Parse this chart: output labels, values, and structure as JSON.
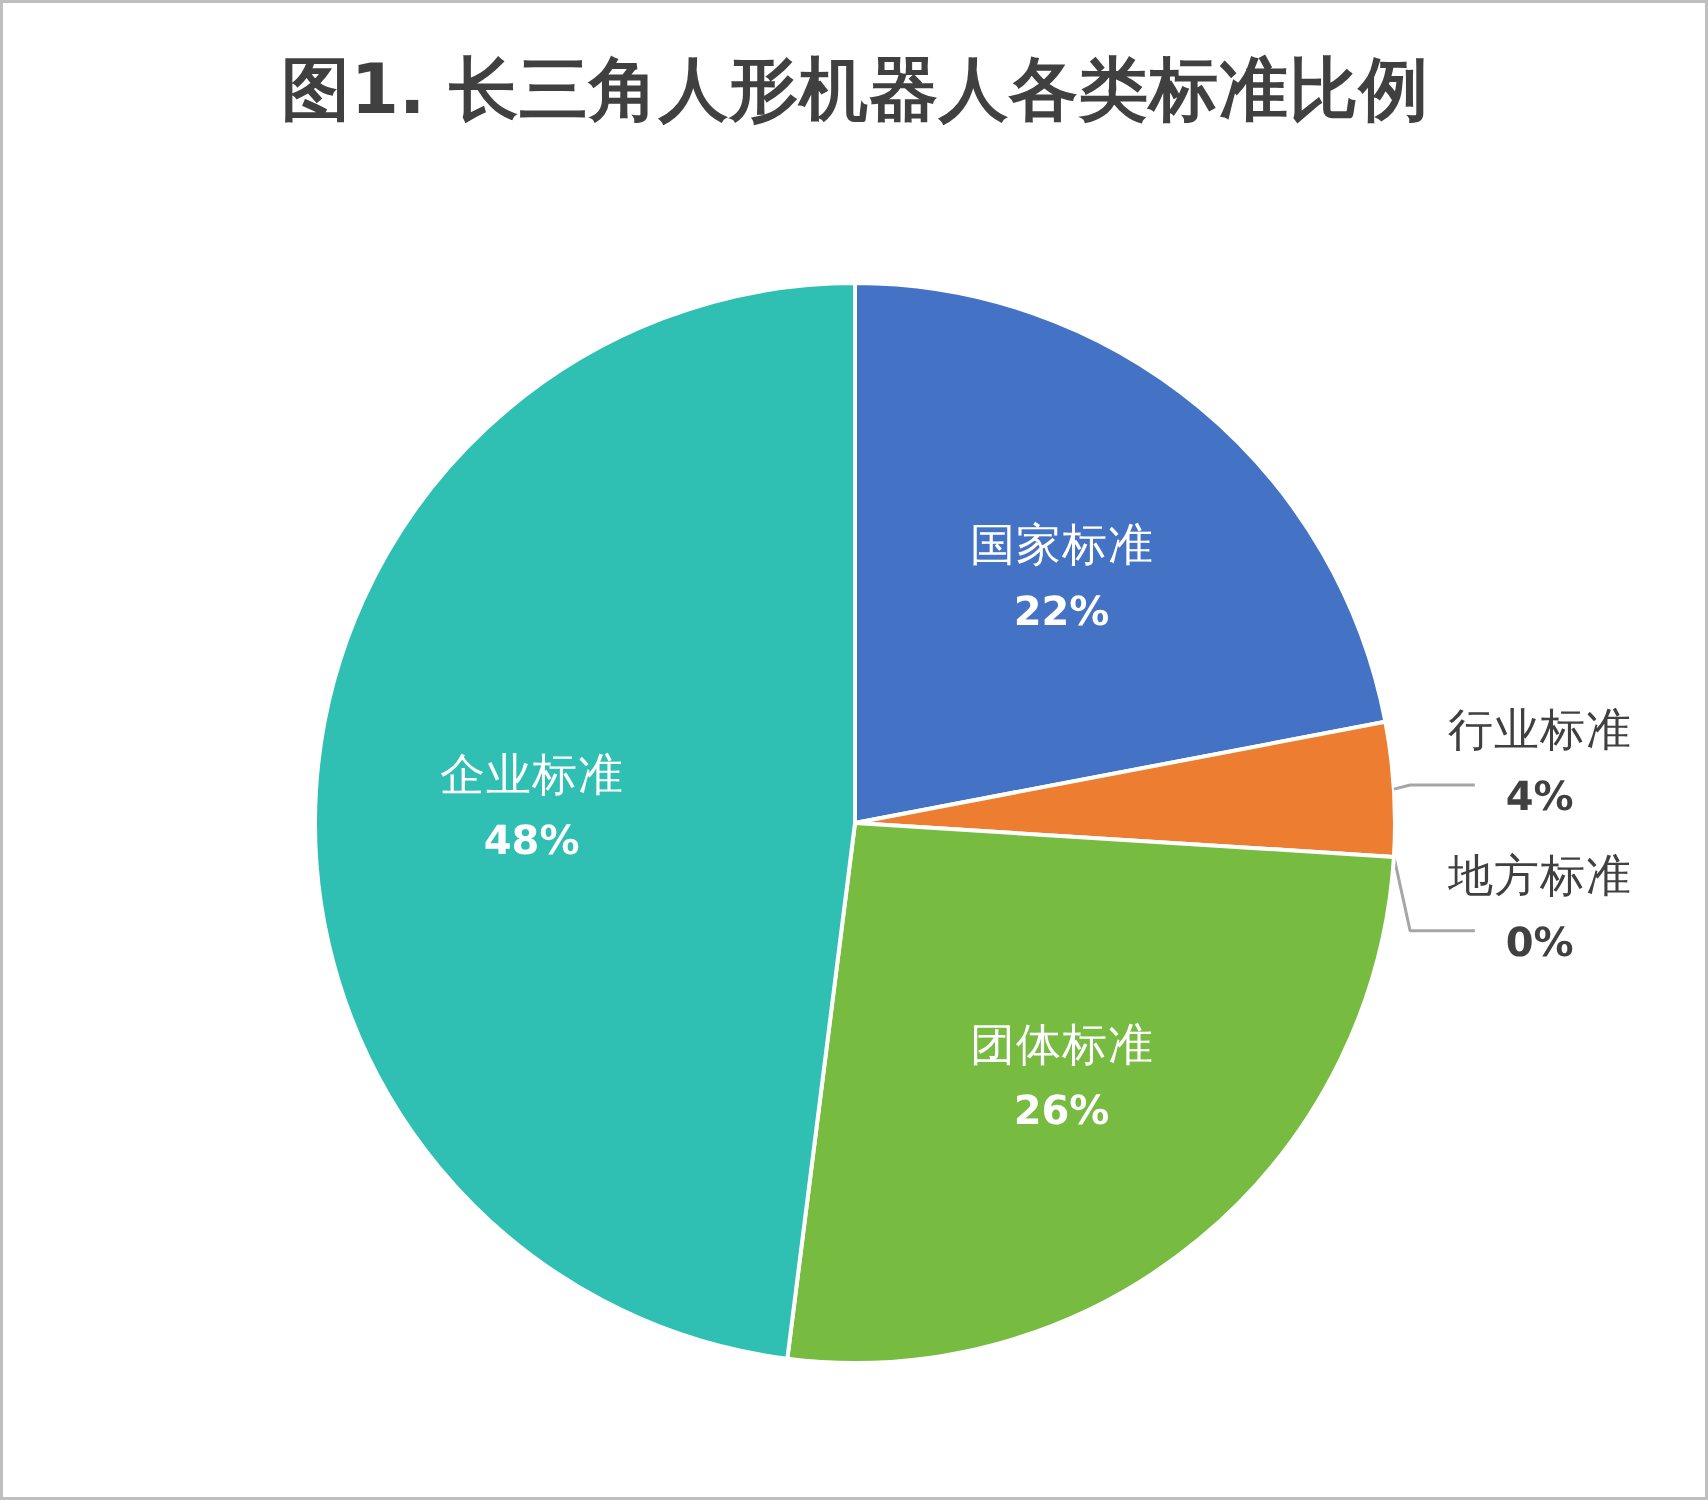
{
  "chart_data": {
    "type": "pie",
    "title": "图1. 长三角人形机器人各类标准比例",
    "categories": [
      "国家标准",
      "行业标准",
      "地方标准",
      "团体标准",
      "企业标准"
    ],
    "values": [
      22,
      4,
      0,
      26,
      48
    ],
    "value_labels": [
      "22%",
      "4%",
      "0%",
      "26%",
      "48%"
    ],
    "colors": [
      "#4472c4",
      "#ed7d31",
      "#a5a5a5",
      "#77bb41",
      "#2fbfb3"
    ]
  }
}
